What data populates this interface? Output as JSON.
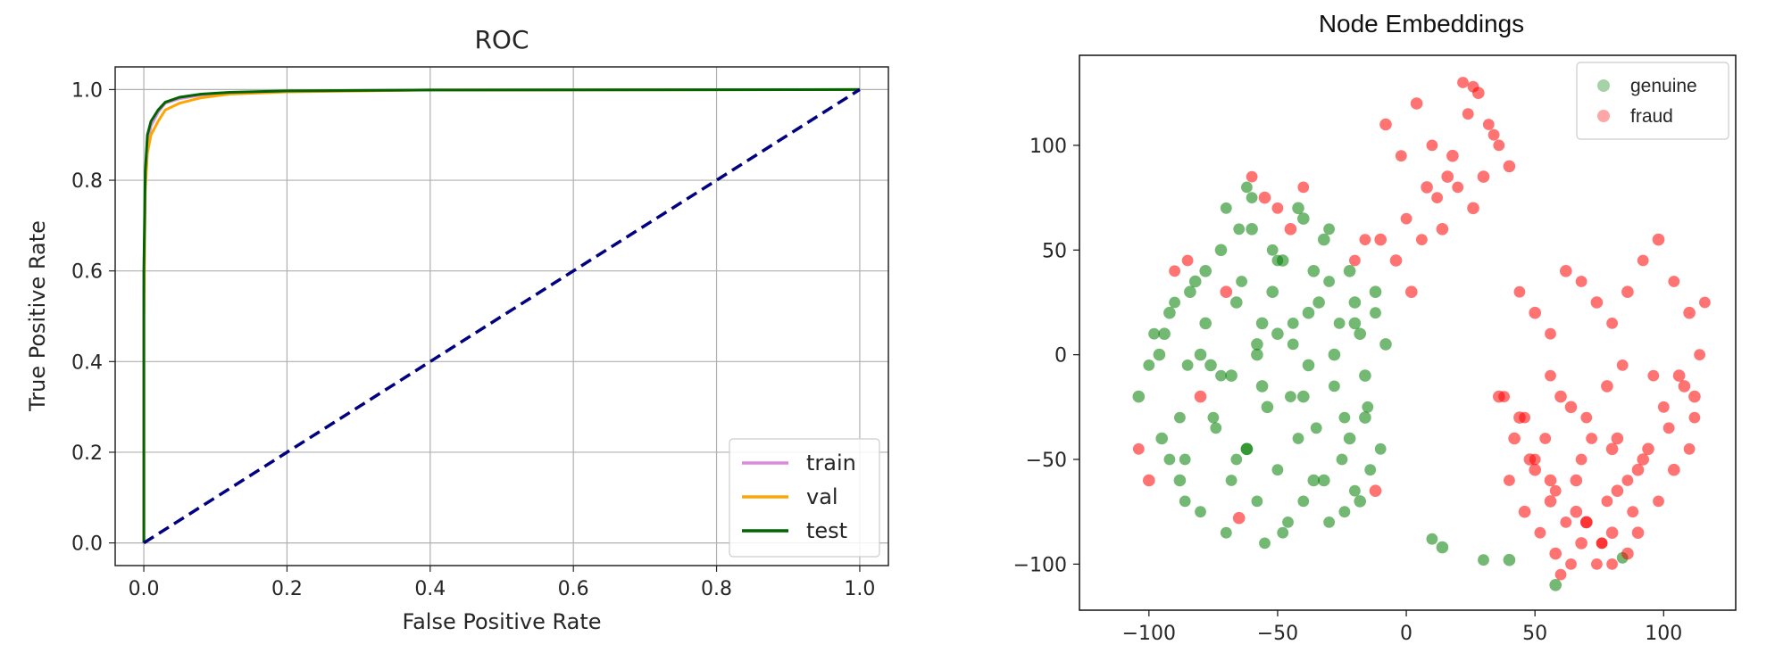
{
  "chart_data": [
    {
      "type": "line",
      "title": "ROC",
      "xlabel": "False Positive Rate",
      "ylabel": "True Positive Rate",
      "xlim": [
        -0.04,
        1.04
      ],
      "ylim": [
        -0.05,
        1.05
      ],
      "xticks": [
        "0.0",
        "0.2",
        "0.4",
        "0.6",
        "0.8",
        "1.0"
      ],
      "yticks": [
        "0.0",
        "0.2",
        "0.4",
        "0.6",
        "0.8",
        "1.0"
      ],
      "grid": true,
      "legend": "lower-right",
      "series": [
        {
          "name": "train",
          "color": "#dd88dd",
          "x": [
            0,
            0.0,
            0.002,
            0.005,
            0.01,
            0.02,
            0.03,
            0.05,
            0.08,
            0.12,
            0.2,
            0.4,
            1.0
          ],
          "y": [
            0,
            0.55,
            0.8,
            0.88,
            0.92,
            0.95,
            0.97,
            0.98,
            0.988,
            0.993,
            0.997,
            0.999,
            1.0
          ]
        },
        {
          "name": "val",
          "color": "#ffa500",
          "x": [
            0,
            0.0,
            0.002,
            0.005,
            0.01,
            0.02,
            0.03,
            0.05,
            0.08,
            0.12,
            0.2,
            0.4,
            1.0
          ],
          "y": [
            0,
            0.5,
            0.78,
            0.86,
            0.9,
            0.93,
            0.955,
            0.97,
            0.982,
            0.99,
            0.995,
            0.999,
            1.0
          ]
        },
        {
          "name": "test",
          "color": "#006400",
          "x": [
            0,
            0.0,
            0.002,
            0.005,
            0.01,
            0.02,
            0.03,
            0.05,
            0.08,
            0.12,
            0.2,
            0.4,
            1.0
          ],
          "y": [
            0,
            0.6,
            0.82,
            0.9,
            0.93,
            0.955,
            0.972,
            0.983,
            0.99,
            0.994,
            0.997,
            0.999,
            1.0
          ]
        },
        {
          "color": "#000080",
          "style": "dashed",
          "x": [
            0,
            1
          ],
          "y": [
            0,
            1
          ]
        }
      ]
    },
    {
      "type": "scatter",
      "title": "Node Embeddings",
      "xlim": [
        -127,
        128
      ],
      "ylim": [
        -122,
        143
      ],
      "xticks": [
        "−100",
        "−50",
        "0",
        "50",
        "100"
      ],
      "yticks": [
        "−100",
        "−50",
        "0",
        "50",
        "100"
      ],
      "grid": false,
      "legend": "top-right",
      "series": [
        {
          "name": "genuine",
          "color": "#008000",
          "alpha": 0.35,
          "x": [
            -104,
            -98,
            -95,
            -90,
            -88,
            -85,
            -82,
            -80,
            -78,
            -75,
            -72,
            -70,
            -68,
            -65,
            -62,
            -60,
            -58,
            -55,
            -52,
            -50,
            -48,
            -45,
            -42,
            -40,
            -38,
            -35,
            -32,
            -30,
            -28,
            -25,
            -22,
            -20,
            -18,
            -15,
            -12,
            -10,
            -8,
            -100,
            -92,
            -86,
            -80,
            -74,
            -66,
            -58,
            -50,
            -42,
            -36,
            -28,
            -20,
            -14,
            -96,
            -88,
            -78,
            -68,
            -56,
            -46,
            -34,
            -24,
            -16,
            -92,
            -84,
            -72,
            -62,
            -52,
            -40,
            -30,
            -22,
            -12,
            -94,
            -86,
            -76,
            -64,
            -54,
            -44,
            -32,
            -26,
            -18,
            -70,
            -60,
            -50,
            -40,
            -30,
            -20,
            -62,
            -56,
            -48,
            -36,
            -24,
            -16,
            -66,
            -58,
            -44,
            -38,
            10,
            14,
            30,
            40,
            84,
            58
          ],
          "y": [
            -20,
            10,
            -40,
            25,
            -60,
            -5,
            35,
            -75,
            15,
            -30,
            50,
            -85,
            -10,
            60,
            -45,
            75,
            5,
            -90,
            30,
            -55,
            45,
            -20,
            70,
            -70,
            20,
            -35,
            55,
            -80,
            0,
            -50,
            40,
            -65,
            10,
            -25,
            30,
            -45,
            5,
            -5,
            20,
            -50,
            0,
            -35,
            25,
            -70,
            10,
            -40,
            40,
            -15,
            15,
            -55,
            0,
            -30,
            40,
            -60,
            15,
            -80,
            25,
            -30,
            -10,
            -50,
            30,
            -10,
            -45,
            50,
            -20,
            60,
            -40,
            20,
            10,
            -70,
            -5,
            35,
            -25,
            5,
            -60,
            15,
            -70,
            70,
            60,
            45,
            65,
            35,
            25,
            80,
            -15,
            -85,
            -60,
            -75,
            -30,
            -50,
            0,
            15,
            -5,
            -88,
            -92,
            -98,
            -98,
            -97,
            -110
          ],
          "sizes": [
            15,
            14,
            15,
            14,
            15,
            14,
            15,
            14,
            15,
            14,
            15,
            14,
            15,
            14,
            15,
            14,
            15,
            14,
            15,
            14,
            15,
            14,
            15,
            14,
            15,
            14,
            15,
            14,
            15,
            14,
            15,
            14,
            15,
            14,
            15,
            14,
            15,
            14,
            15,
            14,
            15,
            14,
            15,
            14,
            15,
            14,
            15,
            14,
            15,
            14,
            15,
            14,
            15,
            14,
            15,
            14,
            15,
            14,
            15,
            14,
            15,
            14,
            15,
            14,
            15,
            14,
            15,
            14,
            15,
            14,
            15,
            14,
            15,
            14,
            15,
            14,
            15,
            14,
            15,
            14,
            15,
            14,
            15,
            14,
            15,
            14,
            15,
            14,
            15,
            14,
            15,
            14,
            15,
            14,
            15,
            14,
            15,
            14,
            15
          ]
        },
        {
          "name": "fraud",
          "color": "#ff0000",
          "alpha": 0.35,
          "x": [
            -8,
            -2,
            4,
            10,
            16,
            22,
            28,
            34,
            40,
            20,
            26,
            32,
            14,
            6,
            -4,
            12,
            18,
            24,
            30,
            36,
            -10,
            0,
            8,
            44,
            50,
            56,
            62,
            68,
            74,
            80,
            86,
            92,
            98,
            104,
            110,
            116,
            60,
            70,
            82,
            96,
            108,
            114,
            48,
            54,
            66,
            78,
            90,
            102,
            112,
            40,
            46,
            52,
            58,
            64,
            70,
            76,
            82,
            88,
            94,
            100,
            106,
            112,
            42,
            50,
            56,
            62,
            68,
            74,
            80,
            86,
            92,
            38,
            44,
            56,
            64,
            72,
            78,
            84,
            50,
            58,
            66,
            76,
            86,
            60,
            70,
            80,
            90,
            98,
            104,
            110,
            36,
            46,
            56,
            68,
            80,
            -60,
            -55,
            -50,
            -45,
            -40,
            -70,
            -85,
            -100,
            -104,
            -12,
            -16,
            2,
            -20,
            -80,
            -90,
            -65,
            26
          ],
          "y": [
            110,
            95,
            120,
            100,
            85,
            130,
            125,
            105,
            90,
            80,
            70,
            110,
            60,
            55,
            45,
            75,
            95,
            115,
            85,
            100,
            55,
            65,
            80,
            30,
            20,
            10,
            40,
            35,
            25,
            15,
            30,
            45,
            55,
            35,
            20,
            25,
            -20,
            -30,
            -40,
            -10,
            -15,
            0,
            -50,
            -40,
            -60,
            -70,
            -55,
            -35,
            -20,
            -60,
            -75,
            -85,
            -95,
            -100,
            -80,
            -90,
            -65,
            -75,
            -45,
            -25,
            -10,
            -30,
            -40,
            -50,
            -70,
            -80,
            -90,
            -100,
            -85,
            -60,
            -50,
            -20,
            -30,
            -10,
            -25,
            -40,
            -15,
            -5,
            -55,
            -65,
            -75,
            -90,
            -95,
            -105,
            -80,
            -100,
            -85,
            -70,
            -55,
            -45,
            -20,
            -30,
            -60,
            -50,
            -45,
            85,
            75,
            70,
            60,
            80,
            30,
            45,
            -60,
            -45,
            -65,
            55,
            30,
            45,
            -20,
            40,
            -78,
            128
          ],
          "sizes": [
            15,
            14,
            15,
            14,
            15,
            14,
            15,
            14,
            15,
            14,
            15,
            14,
            15,
            14,
            15,
            14,
            15,
            14,
            15,
            14,
            15,
            14,
            15,
            14,
            15,
            14,
            15,
            14,
            15,
            14,
            15,
            14,
            15,
            14,
            15,
            14,
            15,
            14,
            15,
            14,
            15,
            14,
            15,
            14,
            15,
            14,
            15,
            14,
            15,
            14,
            15,
            14,
            15,
            14,
            15,
            14,
            15,
            14,
            15,
            14,
            15,
            14,
            15,
            14,
            15,
            14,
            15,
            14,
            15,
            14,
            15,
            14,
            15,
            14,
            15,
            14,
            15,
            14,
            15,
            14,
            15,
            14,
            15,
            14,
            15,
            14,
            15,
            14,
            15,
            14,
            15,
            14,
            15,
            14,
            15,
            14,
            15,
            14,
            15,
            14,
            15,
            14,
            15,
            14,
            15,
            14,
            15,
            14,
            15,
            14,
            15,
            14
          ]
        }
      ]
    }
  ]
}
